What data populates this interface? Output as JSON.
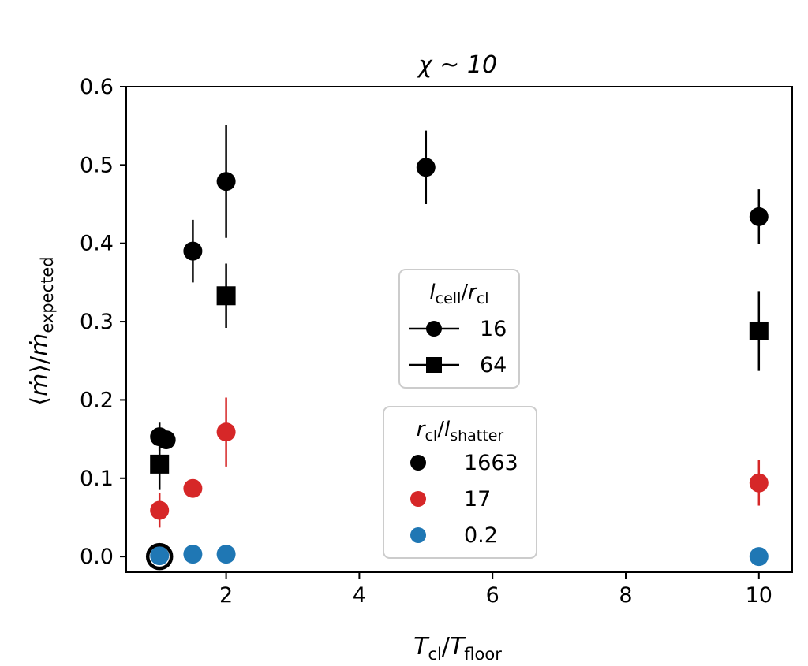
{
  "chart_data": {
    "type": "scatter",
    "title": "χ ~ 10",
    "xlabel": "T_cl/T_floor",
    "ylabel": "⟨ṁ⟩/ṁ_expected",
    "xlim": [
      0.5,
      10.5
    ],
    "ylim": [
      -0.02,
      0.6
    ],
    "xticks": [
      2,
      4,
      6,
      8,
      10
    ],
    "xtick_labels": [
      "2",
      "4",
      "6",
      "8",
      "10"
    ],
    "yticks": [
      0.0,
      0.1,
      0.2,
      0.3,
      0.4,
      0.5,
      0.6
    ],
    "ytick_labels": [
      "0.0",
      "0.1",
      "0.2",
      "0.3",
      "0.4",
      "0.5",
      "0.6"
    ],
    "grid": false,
    "colors": {
      "1663": "#000000",
      "17": "#d62728",
      "0.2": "#1f77b4"
    },
    "legends": [
      {
        "title": "l_cell/r_cl",
        "placement": "center",
        "entries": [
          {
            "label": "16",
            "marker": "circle"
          },
          {
            "label": "64",
            "marker": "square"
          }
        ]
      },
      {
        "title": "r_cl/l_shatter",
        "placement": "lower center",
        "entries": [
          {
            "label": "1663",
            "color": "#000000"
          },
          {
            "label": "17",
            "color": "#d62728"
          },
          {
            "label": "0.2",
            "color": "#1f77b4"
          }
        ]
      }
    ],
    "points": [
      {
        "x": 1.0,
        "y": 0.153,
        "err": 0.018,
        "marker": "circle",
        "group": "1663"
      },
      {
        "x": 1.1,
        "y": 0.149,
        "err": 0.0,
        "marker": "circle",
        "group": "1663"
      },
      {
        "x": 1.5,
        "y": 0.39,
        "err": 0.04,
        "marker": "circle",
        "group": "1663"
      },
      {
        "x": 2.0,
        "y": 0.479,
        "err": 0.072,
        "marker": "circle",
        "group": "1663"
      },
      {
        "x": 5.0,
        "y": 0.497,
        "err": 0.047,
        "marker": "circle",
        "group": "1663"
      },
      {
        "x": 10.0,
        "y": 0.434,
        "err": 0.035,
        "marker": "circle",
        "group": "1663"
      },
      {
        "x": 1.0,
        "y": 0.118,
        "err": 0.033,
        "marker": "square",
        "group": "1663"
      },
      {
        "x": 2.0,
        "y": 0.333,
        "err": 0.041,
        "marker": "square",
        "group": "1663"
      },
      {
        "x": 10.0,
        "y": 0.288,
        "err": 0.051,
        "marker": "square",
        "group": "1663"
      },
      {
        "x": 1.0,
        "y": 0.059,
        "err": 0.022,
        "marker": "circle",
        "group": "17"
      },
      {
        "x": 1.5,
        "y": 0.087,
        "err": 0.0,
        "marker": "circle",
        "group": "17"
      },
      {
        "x": 2.0,
        "y": 0.159,
        "err": 0.044,
        "marker": "circle",
        "group": "17"
      },
      {
        "x": 10.0,
        "y": 0.094,
        "err": 0.029,
        "marker": "circle",
        "group": "17"
      },
      {
        "x": 1.0,
        "y": 0.001,
        "err": 0.0,
        "marker": "circle",
        "group": "0.2"
      },
      {
        "x": 1.5,
        "y": 0.003,
        "err": 0.0,
        "marker": "circle",
        "group": "0.2"
      },
      {
        "x": 2.0,
        "y": 0.003,
        "err": 0.0,
        "marker": "circle",
        "group": "0.2"
      },
      {
        "x": 10.0,
        "y": 0.0,
        "err": 0.0,
        "marker": "circle",
        "group": "0.2"
      },
      {
        "x": 1.0,
        "y": 0.0,
        "err": 0.0,
        "marker": "open-circle",
        "group": "1663"
      }
    ]
  }
}
